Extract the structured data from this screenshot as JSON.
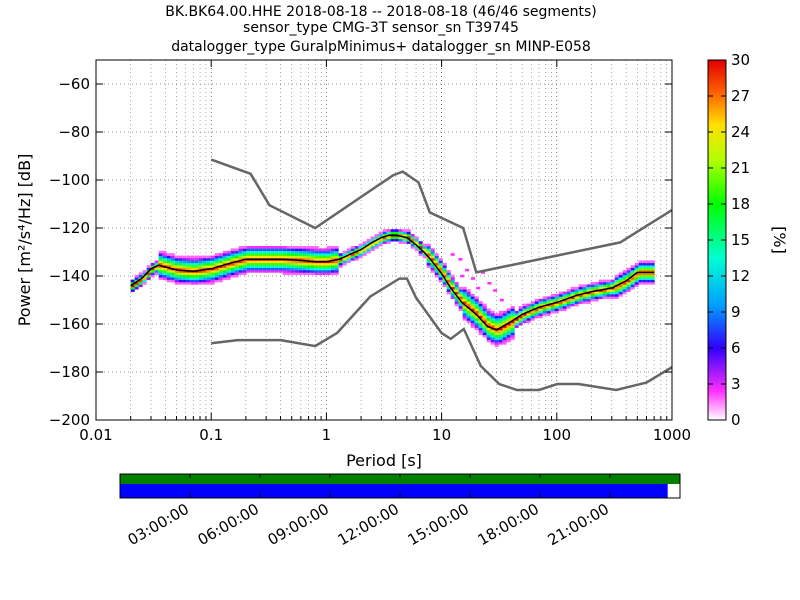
{
  "title": {
    "line1": "BK.BK64.00.HHE   2018-08-18 -- 2018-08-18  (46/46 segments)",
    "line2": "sensor_type CMG-3T sensor_sn T39745",
    "line3": "datalogger_type GuralpMinimus+ datalogger_sn MINP-E058"
  },
  "colors": {
    "model_curves": "#666666",
    "mode_line": "#000000",
    "coverage_green": "#007f00",
    "coverage_blue": "#0000ff"
  },
  "chart_data": {
    "type": "heatmap",
    "xlabel": "Period [s]",
    "ylabel": "Power [m²/s⁴/Hz] [dB]",
    "xscale": "log",
    "xlim": [
      0.01,
      1000
    ],
    "ylim": [
      -200,
      -50
    ],
    "x_ticks": [
      {
        "value": 0.01,
        "label": "0.01"
      },
      {
        "value": 0.1,
        "label": "0.1"
      },
      {
        "value": 1,
        "label": "1"
      },
      {
        "value": 10,
        "label": "10"
      },
      {
        "value": 100,
        "label": "100"
      },
      {
        "value": 1000,
        "label": "1000"
      }
    ],
    "y_ticks": [
      {
        "value": -60,
        "label": "−60"
      },
      {
        "value": -80,
        "label": "−80"
      },
      {
        "value": -100,
        "label": "−100"
      },
      {
        "value": -120,
        "label": "−120"
      },
      {
        "value": -140,
        "label": "−140"
      },
      {
        "value": -160,
        "label": "−160"
      },
      {
        "value": -180,
        "label": "−180"
      },
      {
        "value": -200,
        "label": "−200"
      }
    ],
    "grid": true,
    "colorbar": {
      "label": "[%]",
      "range": [
        0,
        30
      ],
      "ticks": [
        {
          "value": 0,
          "label": "0"
        },
        {
          "value": 3,
          "label": "3"
        },
        {
          "value": 6,
          "label": "6"
        },
        {
          "value": 9,
          "label": "9"
        },
        {
          "value": 12,
          "label": "12"
        },
        {
          "value": 15,
          "label": "15"
        },
        {
          "value": 18,
          "label": "18"
        },
        {
          "value": 21,
          "label": "21"
        },
        {
          "value": 24,
          "label": "24"
        },
        {
          "value": 27,
          "label": "27"
        },
        {
          "value": 30,
          "label": "30"
        }
      ]
    },
    "nhnm": [
      [
        0.1,
        -91.5
      ],
      [
        0.22,
        -97.4
      ],
      [
        0.32,
        -110.5
      ],
      [
        0.8,
        -120.0
      ],
      [
        3.8,
        -98.0
      ],
      [
        4.6,
        -96.5
      ],
      [
        6.3,
        -101.0
      ],
      [
        7.9,
        -113.5
      ],
      [
        15.4,
        -120.0
      ],
      [
        20,
        -138.5
      ],
      [
        354.8,
        -126.0
      ],
      [
        1000,
        -112.5
      ]
    ],
    "nlnm": [
      [
        0.1,
        -168.0
      ],
      [
        0.17,
        -166.7
      ],
      [
        0.4,
        -166.7
      ],
      [
        0.8,
        -169.2
      ],
      [
        1.24,
        -163.7
      ],
      [
        2.4,
        -148.6
      ],
      [
        4.3,
        -141.1
      ],
      [
        5.0,
        -141.1
      ],
      [
        6.0,
        -149.0
      ],
      [
        10.0,
        -163.8
      ],
      [
        12.0,
        -166.2
      ],
      [
        15.6,
        -162.1
      ],
      [
        21.9,
        -177.5
      ],
      [
        31.6,
        -185.0
      ],
      [
        45.0,
        -187.5
      ],
      [
        70.0,
        -187.5
      ],
      [
        101.0,
        -185.0
      ],
      [
        154.0,
        -185.0
      ],
      [
        328.0,
        -187.5
      ],
      [
        600.0,
        -184.4
      ],
      [
        1000,
        -178.0
      ]
    ],
    "mode": [
      [
        0.02,
        -144
      ],
      [
        0.025,
        -141
      ],
      [
        0.03,
        -137
      ],
      [
        0.035,
        -135.5
      ],
      [
        0.05,
        -137.5
      ],
      [
        0.07,
        -138
      ],
      [
        0.1,
        -137
      ],
      [
        0.15,
        -134.5
      ],
      [
        0.2,
        -133
      ],
      [
        0.3,
        -133
      ],
      [
        0.4,
        -133
      ],
      [
        0.6,
        -133.5
      ],
      [
        0.8,
        -134
      ],
      [
        1.0,
        -134
      ],
      [
        1.3,
        -133
      ],
      [
        1.6,
        -131
      ],
      [
        2.0,
        -129
      ],
      [
        2.5,
        -126
      ],
      [
        3.0,
        -124
      ],
      [
        3.5,
        -123
      ],
      [
        4.0,
        -123
      ],
      [
        5.0,
        -124
      ],
      [
        6.0,
        -127
      ],
      [
        7.0,
        -130
      ],
      [
        8.0,
        -133
      ],
      [
        10.0,
        -139
      ],
      [
        12.0,
        -145
      ],
      [
        15.0,
        -151
      ],
      [
        20.0,
        -156
      ],
      [
        25.0,
        -161
      ],
      [
        30.0,
        -162.5
      ],
      [
        40.0,
        -159
      ],
      [
        50.0,
        -156
      ],
      [
        70.0,
        -153
      ],
      [
        100.0,
        -151
      ],
      [
        150.0,
        -148
      ],
      [
        200.0,
        -146.5
      ],
      [
        300.0,
        -145
      ],
      [
        400.0,
        -142
      ],
      [
        500.0,
        -138.5
      ],
      [
        700.0,
        -138.5
      ]
    ],
    "noise_scatter": [
      [
        12.0,
        -131.0
      ],
      [
        14.0,
        -133.0
      ],
      [
        16.0,
        -137.5
      ],
      [
        18.0,
        -141.0
      ],
      [
        22.0,
        -138.5
      ],
      [
        25.0,
        -143.0
      ],
      [
        28.0,
        -146.0
      ],
      [
        32.0,
        -150.0
      ],
      [
        14.5,
        -140.0
      ],
      [
        20.0,
        -145.0
      ]
    ]
  },
  "coverage_bar": {
    "tick_labels": [
      "03:00:00",
      "06:00:00",
      "09:00:00",
      "12:00:00",
      "15:00:00",
      "18:00:00",
      "21:00:00"
    ],
    "tick_hours": [
      3,
      6,
      9,
      12,
      15,
      18,
      21
    ],
    "span_hours": 24,
    "green_fraction": 1.0,
    "blue_fraction": 0.978
  }
}
